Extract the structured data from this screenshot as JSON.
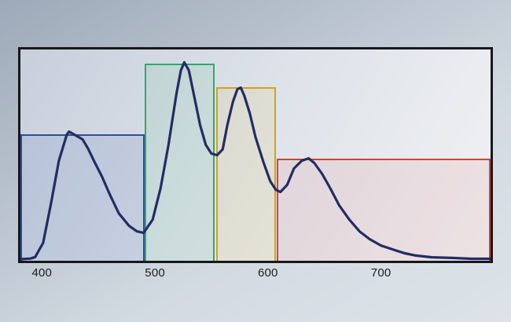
{
  "accent_colors": {
    "frame_border": "#17181a",
    "curve_navy": "#242c63",
    "band_blue_border": "#2e4d9e",
    "band_green_border": "#2fa873",
    "band_yellow_border": "#d2a21f",
    "band_red_border": "#d8432c"
  },
  "chart_data": {
    "type": "area",
    "title": "",
    "xlabel": "",
    "ylabel": "",
    "grid": false,
    "legend": "none",
    "x_ticks": [
      400,
      500,
      600,
      700
    ],
    "x_range_nm": [
      381,
      797
    ],
    "y_range": [
      0,
      1
    ],
    "bands": [
      {
        "name": "blue",
        "nm_start": 381,
        "nm_end": 491,
        "intensity": 0.595,
        "border_color": "#2e4d9e",
        "fill_color": "rgba(60,95,180,0.13)"
      },
      {
        "name": "green",
        "nm_start": 491,
        "nm_end": 553,
        "intensity": 0.931,
        "border_color": "#2fa873",
        "fill_color": "rgba(60,180,110,0.10)"
      },
      {
        "name": "yellow",
        "nm_start": 554,
        "nm_end": 607,
        "intensity": 0.819,
        "border_color": "#d2a21f",
        "fill_color": "rgba(230,190,60,0.12)"
      },
      {
        "name": "red",
        "nm_start": 608,
        "nm_end": 797,
        "intensity": 0.479,
        "border_color": "#d8432c",
        "fill_color": "rgba(220,90,90,0.10)"
      }
    ],
    "curve": {
      "name": "spectral-power-distribution",
      "color": "#242c63",
      "stroke_width": 3.2,
      "points": [
        [
          381,
          0.0
        ],
        [
          390,
          0.003
        ],
        [
          394,
          0.01
        ],
        [
          401,
          0.077
        ],
        [
          408,
          0.263
        ],
        [
          415,
          0.468
        ],
        [
          422,
          0.591
        ],
        [
          424,
          0.606
        ],
        [
          429,
          0.591
        ],
        [
          436,
          0.569
        ],
        [
          441,
          0.524
        ],
        [
          446,
          0.468
        ],
        [
          453,
          0.394
        ],
        [
          460,
          0.308
        ],
        [
          468,
          0.218
        ],
        [
          477,
          0.159
        ],
        [
          484,
          0.132
        ],
        [
          490,
          0.125
        ],
        [
          498,
          0.188
        ],
        [
          505,
          0.338
        ],
        [
          512,
          0.543
        ],
        [
          519,
          0.785
        ],
        [
          523,
          0.897
        ],
        [
          526,
          0.935
        ],
        [
          530,
          0.897
        ],
        [
          535,
          0.767
        ],
        [
          540,
          0.636
        ],
        [
          545,
          0.543
        ],
        [
          550,
          0.502
        ],
        [
          555,
          0.494
        ],
        [
          560,
          0.522
        ],
        [
          564,
          0.636
        ],
        [
          569,
          0.748
        ],
        [
          573,
          0.808
        ],
        [
          576,
          0.815
        ],
        [
          579,
          0.778
        ],
        [
          584,
          0.692
        ],
        [
          589,
          0.58
        ],
        [
          596,
          0.461
        ],
        [
          602,
          0.371
        ],
        [
          607,
          0.33
        ],
        [
          611,
          0.319
        ],
        [
          617,
          0.353
        ],
        [
          623,
          0.431
        ],
        [
          630,
          0.468
        ],
        [
          636,
          0.479
        ],
        [
          641,
          0.457
        ],
        [
          648,
          0.405
        ],
        [
          655,
          0.338
        ],
        [
          663,
          0.256
        ],
        [
          672,
          0.188
        ],
        [
          681,
          0.132
        ],
        [
          690,
          0.095
        ],
        [
          700,
          0.065
        ],
        [
          710,
          0.047
        ],
        [
          721,
          0.028
        ],
        [
          731,
          0.017
        ],
        [
          745,
          0.009
        ],
        [
          763,
          0.006
        ],
        [
          780,
          0.002
        ],
        [
          797,
          0.002
        ]
      ]
    }
  }
}
